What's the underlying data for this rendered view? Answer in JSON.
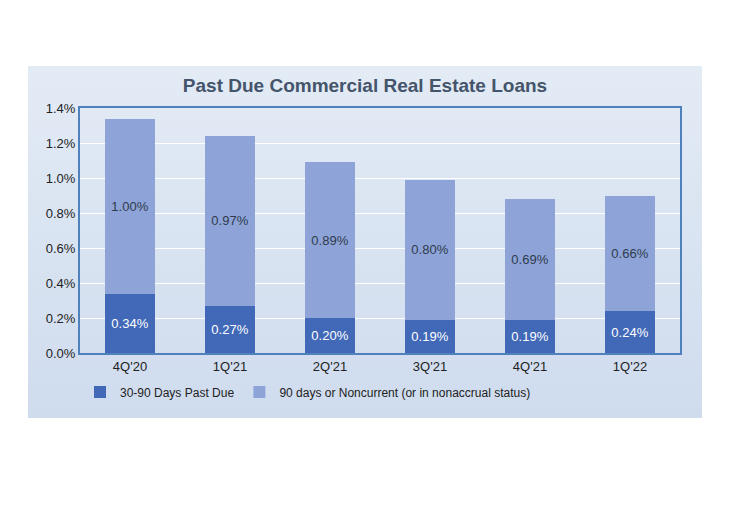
{
  "chart_data": {
    "type": "bar",
    "title": "Past Due Commercial Real Estate Loans",
    "categories": [
      "4Q'20",
      "1Q'21",
      "2Q'21",
      "3Q'21",
      "4Q'21",
      "1Q'22"
    ],
    "series": [
      {
        "name": "30-90 Days Past Due",
        "color": "#4169b8",
        "values": [
          0.34,
          0.27,
          0.2,
          0.19,
          0.19,
          0.24
        ],
        "value_labels": [
          "0.34%",
          "0.27%",
          "0.20%",
          "0.19%",
          "0.19%",
          "0.24%"
        ]
      },
      {
        "name": "90 days or Noncurrent (or in nonaccrual status)",
        "color": "#8ea4d8",
        "values": [
          1.0,
          0.97,
          0.89,
          0.8,
          0.69,
          0.66
        ],
        "value_labels": [
          "1.00%",
          "0.97%",
          "0.89%",
          "0.80%",
          "0.69%",
          "0.66%"
        ]
      }
    ],
    "ylim": [
      0,
      1.4
    ],
    "yticks": [
      {
        "value": 0,
        "label": "0.0%"
      },
      {
        "value": 0.2,
        "label": "0.2%"
      },
      {
        "value": 0.4,
        "label": "0.4%"
      },
      {
        "value": 0.6,
        "label": "0.6%"
      },
      {
        "value": 0.8,
        "label": "0.8%"
      },
      {
        "value": 1.0,
        "label": "1.0%"
      },
      {
        "value": 1.2,
        "label": "1.2%"
      },
      {
        "value": 1.4,
        "label": "1.4%"
      }
    ],
    "stacked": true,
    "data_labels": true,
    "grid": true,
    "legend": "bottom"
  }
}
